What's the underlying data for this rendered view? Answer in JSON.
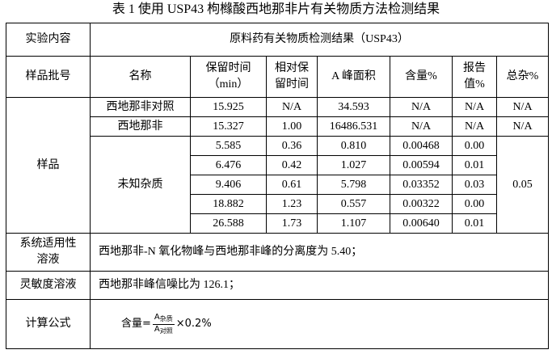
{
  "title": "表 1  使用 USP43 枸橼酸西地那非片有关物质方法检测结果",
  "table": {
    "top": {
      "label": "实验内容",
      "value": "原料药有关物质检测结果（USP43）"
    },
    "header": [
      [
        "样品批号"
      ],
      [
        "名称"
      ],
      [
        "保留时间",
        "（min）"
      ],
      [
        "相对保",
        "留时间"
      ],
      [
        "A 峰面积"
      ],
      [
        "含量%"
      ],
      [
        "报告",
        "值%"
      ],
      [
        "总杂%"
      ]
    ],
    "sample_label": "样品",
    "reference_rows": [
      {
        "name": "西地那非对照",
        "cells": [
          "15.925",
          "N/A",
          "34.593",
          "N/A",
          "N/A",
          "N/A"
        ]
      },
      {
        "name": "西地那非",
        "cells": [
          "15.327",
          "1.00",
          "16486.531",
          "N/A",
          "N/A",
          "N/A"
        ]
      }
    ],
    "impurity": {
      "name": "未知杂质",
      "total": "0.05",
      "rows": [
        [
          "5.585",
          "0.36",
          "0.810",
          "0.00468",
          "0.00"
        ],
        [
          "6.476",
          "0.42",
          "1.027",
          "0.00594",
          "0.01"
        ],
        [
          "9.406",
          "0.61",
          "5.798",
          "0.03352",
          "0.03"
        ],
        [
          "18.882",
          "1.23",
          "0.557",
          "0.00322",
          "0.00"
        ],
        [
          "26.588",
          "1.73",
          "1.107",
          "0.00640",
          "0.01"
        ]
      ]
    },
    "system_suitability": {
      "label": [
        "系统适用性",
        "溶液"
      ],
      "text": "西地那非-N 氧化物峰与西地那非峰的分离度为 5.40；"
    },
    "sensitivity": {
      "label": "灵敏度溶液",
      "text": "西地那非峰信噪比为 126.1；"
    },
    "formula": {
      "label": "计算公式",
      "lhs": "含量=",
      "numerator": {
        "symbol": "A",
        "subscript": "杂质"
      },
      "denominator": {
        "symbol": "A",
        "subscript": "对照"
      },
      "rhs": "×0.2%"
    }
  }
}
